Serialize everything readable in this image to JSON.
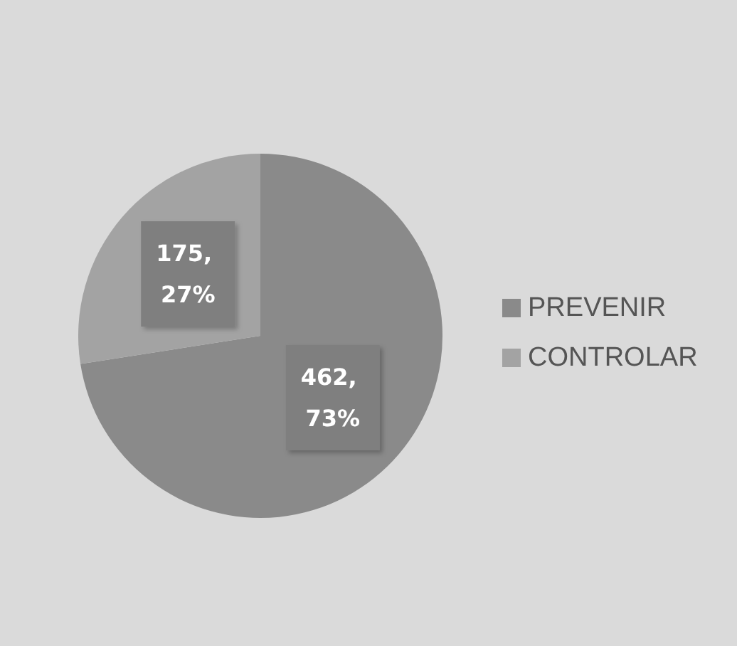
{
  "chart_data": {
    "type": "pie",
    "categories": [
      "PREVENIR",
      "CONTROLAR"
    ],
    "values": [
      462,
      175
    ],
    "colors": [
      "#8a8a8a",
      "#a3a3a3"
    ],
    "value_labels": [
      "462, 73%",
      "175, 27%"
    ],
    "legend": "right"
  }
}
